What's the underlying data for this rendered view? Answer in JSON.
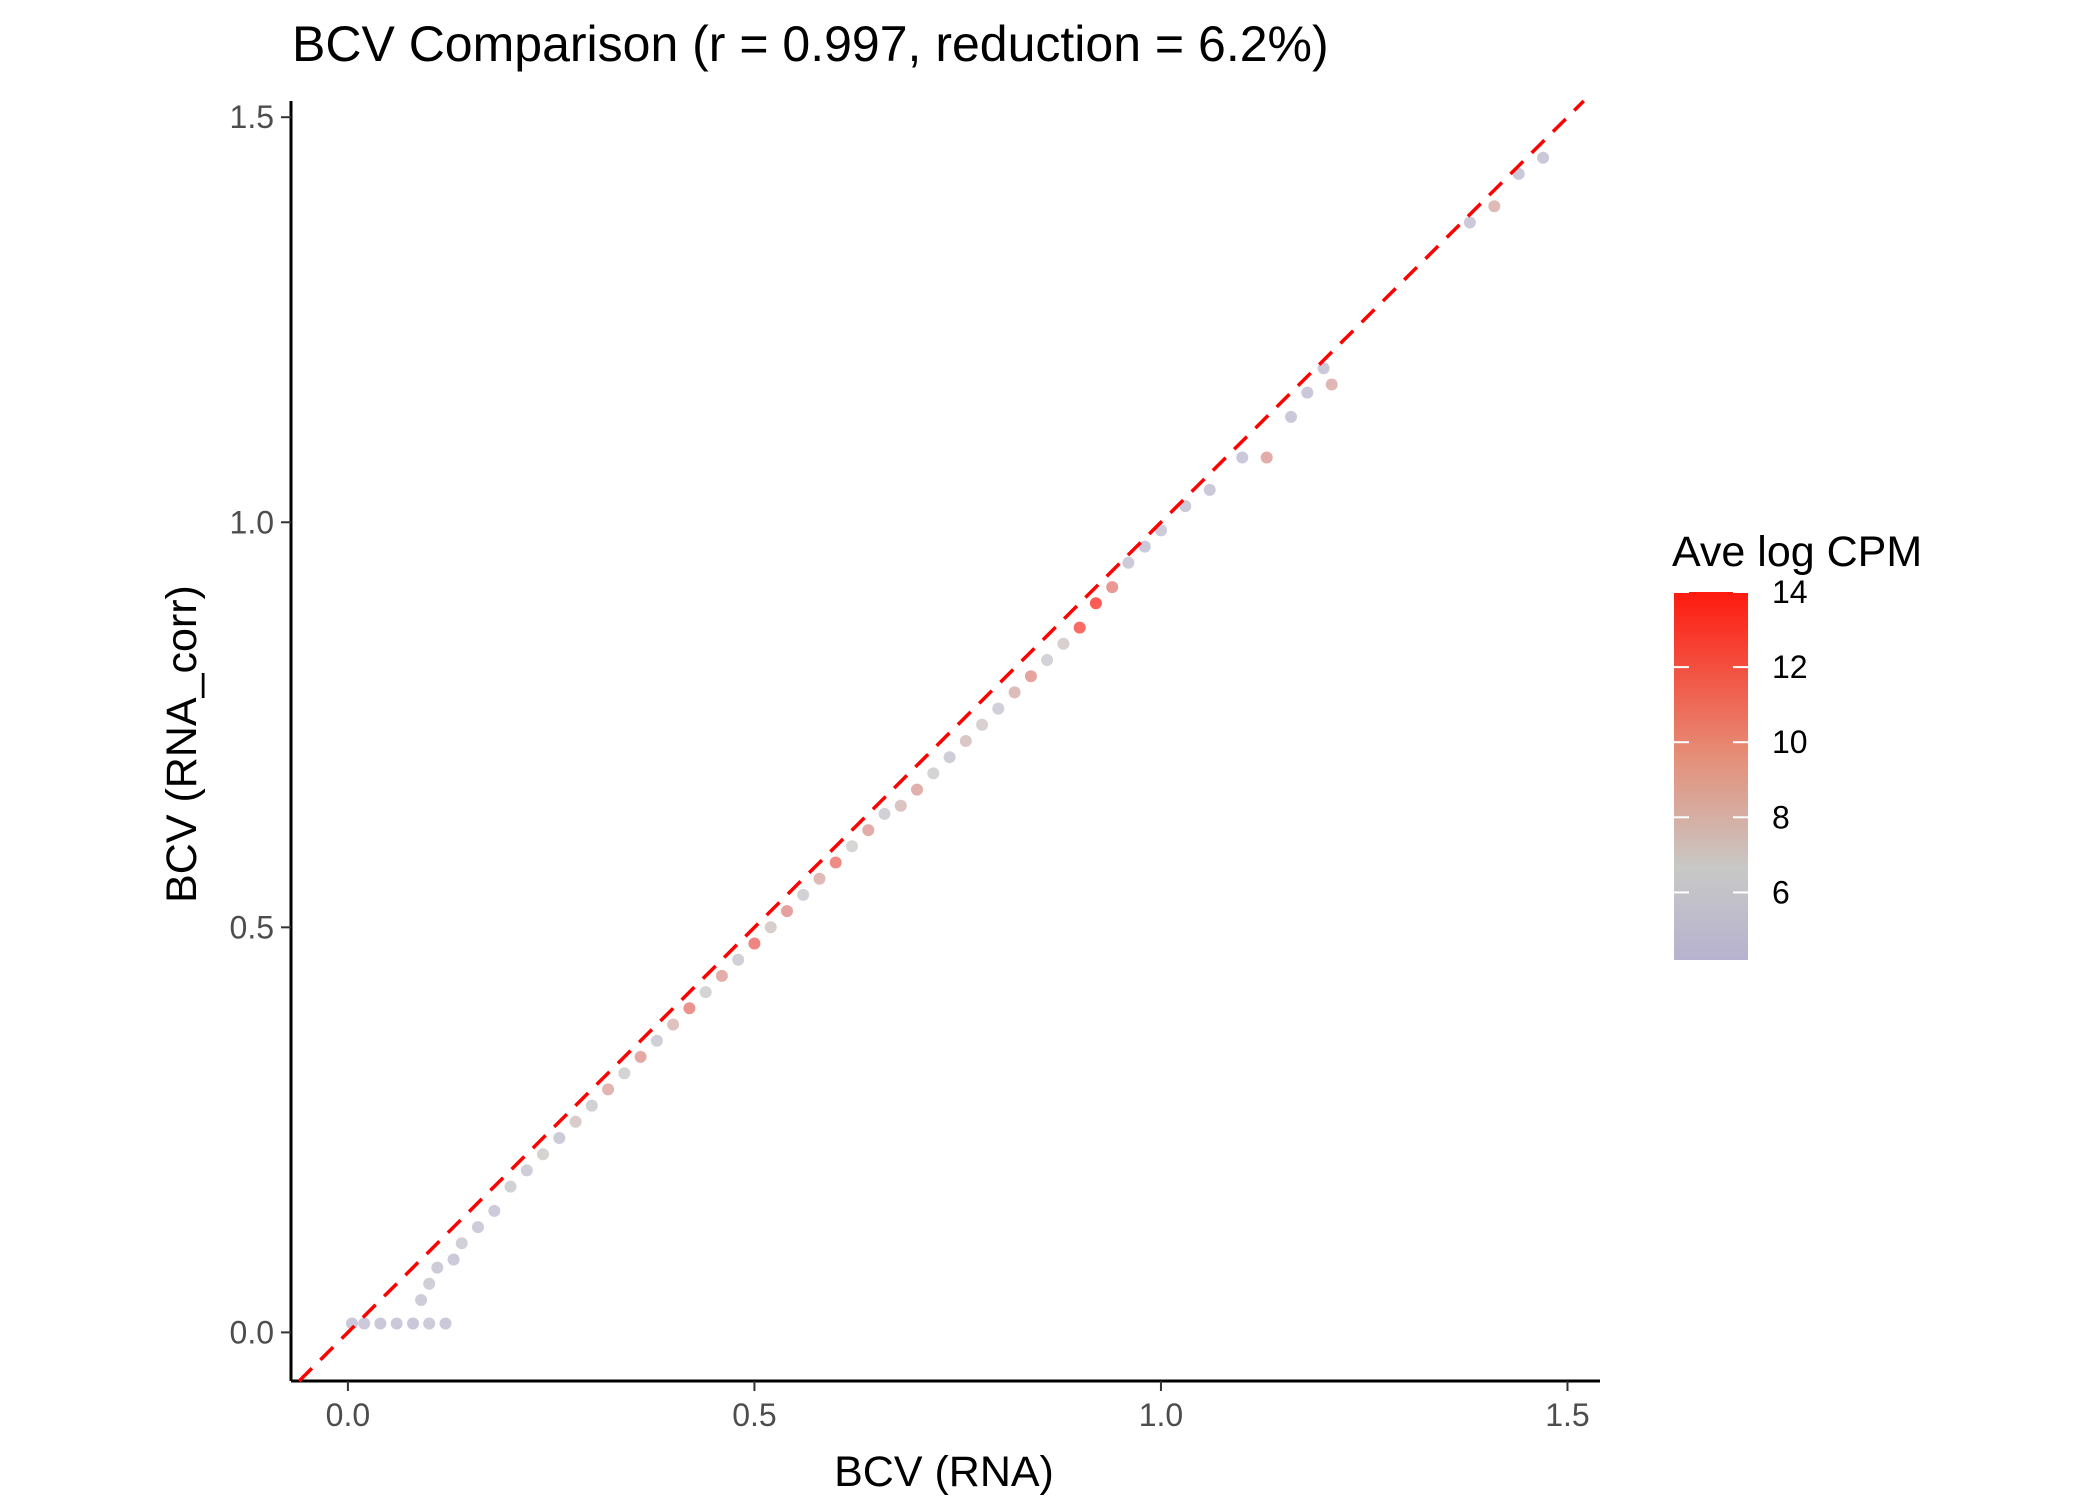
{
  "chart_data": {
    "type": "scatter",
    "title": "BCV Comparison (r = 0.997, reduction = 6.2%)",
    "xlabel": "BCV (RNA)",
    "ylabel": "BCV (RNA_corr)",
    "xlim": [
      -0.07,
      1.54
    ],
    "ylim": [
      -0.06,
      1.52
    ],
    "x_ticks": [
      0.0,
      0.5,
      1.0,
      1.5
    ],
    "y_ticks": [
      0.0,
      0.5,
      1.0,
      1.5
    ],
    "x_tick_labels": [
      "0.0",
      "0.5",
      "1.0",
      "1.5"
    ],
    "y_tick_labels": [
      "0.0",
      "0.5",
      "1.0",
      "1.5"
    ],
    "grid": false,
    "legend": {
      "title": "Ave log CPM",
      "position": "right",
      "type": "colorbar",
      "range": [
        4.2,
        14.0
      ],
      "ticks": [
        6,
        8,
        10,
        12,
        14
      ],
      "tick_labels": [
        "6",
        "8",
        "10",
        "12",
        "14"
      ],
      "color_low": "#b7b2cf",
      "color_mid": "#c8c8c6",
      "color_high": "#ff1a0f"
    },
    "reference_line": {
      "label": "y = x",
      "slope": 1,
      "intercept": 0,
      "color": "#ff0000",
      "style": "dashed"
    },
    "point_color_range": [
      4.2,
      14.0
    ],
    "series": [
      {
        "points": [
          [
            0.005,
            0.011,
            4.5
          ],
          [
            0.02,
            0.011,
            4.8
          ],
          [
            0.04,
            0.011,
            4.6
          ],
          [
            0.06,
            0.011,
            4.7
          ],
          [
            0.08,
            0.011,
            4.4
          ],
          [
            0.1,
            0.011,
            4.9
          ],
          [
            0.12,
            0.011,
            4.5
          ],
          [
            0.09,
            0.04,
            5.2
          ],
          [
            0.1,
            0.06,
            5.5
          ],
          [
            0.11,
            0.08,
            5.0
          ],
          [
            0.13,
            0.09,
            4.8
          ],
          [
            0.14,
            0.11,
            5.6
          ],
          [
            0.16,
            0.13,
            5.2
          ],
          [
            0.18,
            0.15,
            4.9
          ],
          [
            0.2,
            0.18,
            6.0
          ],
          [
            0.22,
            0.2,
            5.4
          ],
          [
            0.24,
            0.22,
            6.8
          ],
          [
            0.26,
            0.24,
            5.1
          ],
          [
            0.28,
            0.26,
            7.2
          ],
          [
            0.3,
            0.28,
            5.8
          ],
          [
            0.32,
            0.3,
            8.5
          ],
          [
            0.34,
            0.32,
            6.2
          ],
          [
            0.36,
            0.34,
            9.2
          ],
          [
            0.38,
            0.36,
            5.5
          ],
          [
            0.4,
            0.38,
            7.8
          ],
          [
            0.42,
            0.4,
            10.4
          ],
          [
            0.44,
            0.42,
            6.4
          ],
          [
            0.46,
            0.44,
            8.9
          ],
          [
            0.48,
            0.46,
            5.7
          ],
          [
            0.5,
            0.48,
            11.2
          ],
          [
            0.52,
            0.5,
            7.1
          ],
          [
            0.54,
            0.52,
            9.6
          ],
          [
            0.56,
            0.54,
            6.0
          ],
          [
            0.58,
            0.56,
            8.2
          ],
          [
            0.6,
            0.58,
            10.8
          ],
          [
            0.62,
            0.6,
            6.6
          ],
          [
            0.64,
            0.62,
            9.0
          ],
          [
            0.66,
            0.64,
            5.9
          ],
          [
            0.68,
            0.65,
            7.6
          ],
          [
            0.7,
            0.67,
            8.8
          ],
          [
            0.72,
            0.69,
            6.3
          ],
          [
            0.74,
            0.71,
            5.4
          ],
          [
            0.76,
            0.73,
            7.4
          ],
          [
            0.78,
            0.75,
            6.9
          ],
          [
            0.8,
            0.77,
            5.6
          ],
          [
            0.82,
            0.79,
            8.1
          ],
          [
            0.84,
            0.81,
            9.5
          ],
          [
            0.86,
            0.83,
            6.1
          ],
          [
            0.88,
            0.85,
            7.0
          ],
          [
            0.9,
            0.87,
            12.6
          ],
          [
            0.92,
            0.9,
            13.5
          ],
          [
            0.94,
            0.92,
            10.1
          ],
          [
            0.96,
            0.95,
            5.0
          ],
          [
            0.98,
            0.97,
            4.6
          ],
          [
            1.0,
            0.99,
            4.9
          ],
          [
            1.03,
            1.02,
            4.7
          ],
          [
            1.06,
            1.04,
            4.8
          ],
          [
            1.1,
            1.08,
            4.5
          ],
          [
            1.13,
            1.08,
            9.0
          ],
          [
            1.16,
            1.13,
            4.6
          ],
          [
            1.18,
            1.16,
            4.4
          ],
          [
            1.2,
            1.19,
            4.5
          ],
          [
            1.21,
            1.17,
            8.4
          ],
          [
            1.38,
            1.37,
            4.8
          ],
          [
            1.41,
            1.39,
            8.2
          ],
          [
            1.44,
            1.43,
            4.5
          ],
          [
            1.47,
            1.45,
            4.7
          ]
        ]
      }
    ]
  }
}
